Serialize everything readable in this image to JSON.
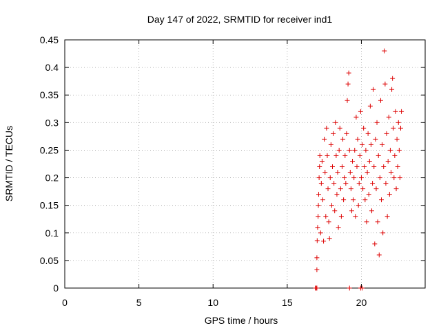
{
  "chart_data": {
    "type": "scatter",
    "title": "Day 147 of 2022, SRMTID for receiver ind1",
    "xlabel": "GPS time / hours",
    "ylabel": "SRMTID / TECUs",
    "xlim": [
      0,
      24.3
    ],
    "ylim": [
      0,
      0.45
    ],
    "xticks": [
      0,
      5,
      10,
      15,
      20
    ],
    "xtick_labels": [
      "0",
      "5",
      "10",
      "15",
      "20"
    ],
    "yticks": [
      0,
      0.05,
      0.1,
      0.15,
      0.2,
      0.25,
      0.3,
      0.35,
      0.4,
      0.45
    ],
    "ytick_labels": [
      "0",
      "0.05",
      "0.1",
      "0.15",
      "0.2",
      "0.25",
      "0.3",
      "0.35",
      "0.4",
      "0.45"
    ],
    "grid": true,
    "marker": "+",
    "color": "#dd0000",
    "series": [
      {
        "name": "SRMTID",
        "points": [
          [
            16.9,
            0.0
          ],
          [
            16.95,
            0.0
          ],
          [
            17.0,
            0.0
          ],
          [
            19.2,
            0.0
          ],
          [
            19.95,
            0.0
          ],
          [
            20.05,
            0.0
          ],
          [
            17.0,
            0.033
          ],
          [
            17.0,
            0.055
          ],
          [
            17.02,
            0.086
          ],
          [
            17.05,
            0.11
          ],
          [
            17.08,
            0.13
          ],
          [
            17.1,
            0.15
          ],
          [
            17.12,
            0.17
          ],
          [
            17.15,
            0.2
          ],
          [
            17.18,
            0.22
          ],
          [
            17.2,
            0.24
          ],
          [
            17.25,
            0.1
          ],
          [
            17.3,
            0.19
          ],
          [
            17.35,
            0.23
          ],
          [
            17.4,
            0.16
          ],
          [
            17.45,
            0.085
          ],
          [
            17.5,
            0.27
          ],
          [
            17.55,
            0.21
          ],
          [
            17.6,
            0.13
          ],
          [
            17.65,
            0.29
          ],
          [
            17.7,
            0.24
          ],
          [
            17.75,
            0.18
          ],
          [
            17.8,
            0.12
          ],
          [
            17.85,
            0.09
          ],
          [
            17.9,
            0.2
          ],
          [
            17.95,
            0.26
          ],
          [
            18.0,
            0.15
          ],
          [
            18.05,
            0.22
          ],
          [
            18.1,
            0.28
          ],
          [
            18.15,
            0.19
          ],
          [
            18.2,
            0.14
          ],
          [
            18.25,
            0.3
          ],
          [
            18.3,
            0.24
          ],
          [
            18.35,
            0.17
          ],
          [
            18.4,
            0.21
          ],
          [
            18.45,
            0.11
          ],
          [
            18.5,
            0.25
          ],
          [
            18.55,
            0.29
          ],
          [
            18.6,
            0.18
          ],
          [
            18.65,
            0.13
          ],
          [
            18.7,
            0.22
          ],
          [
            18.75,
            0.27
          ],
          [
            18.8,
            0.16
          ],
          [
            18.85,
            0.2
          ],
          [
            18.9,
            0.24
          ],
          [
            18.95,
            0.19
          ],
          [
            19.0,
            0.28
          ],
          [
            19.05,
            0.34
          ],
          [
            19.1,
            0.37
          ],
          [
            19.15,
            0.39
          ],
          [
            19.2,
            0.25
          ],
          [
            19.25,
            0.21
          ],
          [
            19.3,
            0.18
          ],
          [
            19.35,
            0.14
          ],
          [
            19.4,
            0.23
          ],
          [
            19.45,
            0.16
          ],
          [
            19.5,
            0.2
          ],
          [
            19.55,
            0.25
          ],
          [
            19.6,
            0.13
          ],
          [
            19.65,
            0.31
          ],
          [
            19.7,
            0.22
          ],
          [
            19.75,
            0.27
          ],
          [
            19.8,
            0.15
          ],
          [
            19.85,
            0.19
          ],
          [
            19.9,
            0.24
          ],
          [
            19.95,
            0.32
          ],
          [
            20.0,
            0.2
          ],
          [
            20.05,
            0.26
          ],
          [
            20.1,
            0.18
          ],
          [
            20.15,
            0.29
          ],
          [
            20.2,
            0.22
          ],
          [
            20.25,
            0.16
          ],
          [
            20.3,
            0.25
          ],
          [
            20.35,
            0.12
          ],
          [
            20.4,
            0.21
          ],
          [
            20.45,
            0.28
          ],
          [
            20.5,
            0.17
          ],
          [
            20.55,
            0.23
          ],
          [
            20.6,
            0.33
          ],
          [
            20.65,
            0.26
          ],
          [
            20.7,
            0.14
          ],
          [
            20.75,
            0.19
          ],
          [
            20.8,
            0.36
          ],
          [
            20.85,
            0.22
          ],
          [
            20.9,
            0.08
          ],
          [
            20.95,
            0.27
          ],
          [
            21.0,
            0.18
          ],
          [
            21.05,
            0.3
          ],
          [
            21.1,
            0.12
          ],
          [
            21.15,
            0.24
          ],
          [
            21.2,
            0.06
          ],
          [
            21.25,
            0.2
          ],
          [
            21.3,
            0.34
          ],
          [
            21.35,
            0.16
          ],
          [
            21.4,
            0.26
          ],
          [
            21.45,
            0.1
          ],
          [
            21.5,
            0.22
          ],
          [
            21.55,
            0.43
          ],
          [
            21.6,
            0.37
          ],
          [
            21.65,
            0.19
          ],
          [
            21.7,
            0.28
          ],
          [
            21.75,
            0.13
          ],
          [
            21.8,
            0.23
          ],
          [
            21.85,
            0.31
          ],
          [
            21.9,
            0.17
          ],
          [
            21.95,
            0.25
          ],
          [
            22.0,
            0.21
          ],
          [
            22.05,
            0.36
          ],
          [
            22.1,
            0.38
          ],
          [
            22.15,
            0.29
          ],
          [
            22.2,
            0.2
          ],
          [
            22.25,
            0.24
          ],
          [
            22.3,
            0.32
          ],
          [
            22.35,
            0.18
          ],
          [
            22.4,
            0.27
          ],
          [
            22.45,
            0.22
          ],
          [
            22.5,
            0.3
          ],
          [
            22.55,
            0.25
          ],
          [
            22.6,
            0.2
          ],
          [
            22.65,
            0.29
          ],
          [
            22.7,
            0.32
          ]
        ]
      }
    ]
  }
}
